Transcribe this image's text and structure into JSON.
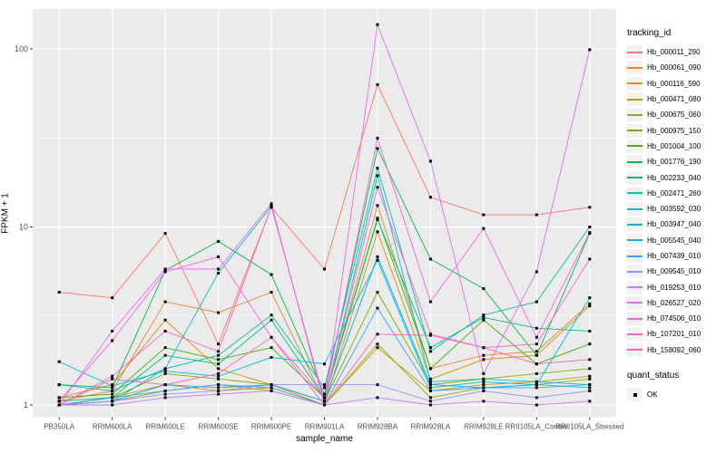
{
  "style": {
    "panel_bg": "#EBEBEB",
    "grid_color": "#FFFFFF",
    "tick_text_color": "#4D4D4D",
    "axis_title_color": "#000000",
    "marker_color": "#000000",
    "legend_key_bg": "#F2F2F2"
  },
  "chart_data": {
    "type": "line",
    "y_scale": "log10",
    "xlabel": "sample_name",
    "ylabel": "FPKM + 1",
    "legend_position": "right",
    "legend_title": "tracking_id",
    "legend2_title": "quant_status",
    "legend2_items": [
      "OK"
    ],
    "y_ticks": [
      1,
      10,
      100
    ],
    "ylim": [
      1,
      170
    ],
    "grid": true,
    "marker": "filled-black-square",
    "categories": [
      "PB350LA",
      "RRIM600LA",
      "RRIM600LE",
      "RRIM600SE",
      "RRIM600PE",
      "RRIM901LA",
      "RRIM928BA",
      "RRIM928LA",
      "RRIM928LE",
      "RRII105LA_Control",
      "RRII105LA_Stressed"
    ],
    "series": [
      {
        "name": "Hb_000011_290",
        "color": "#F8766D",
        "values": [
          4.3,
          4.0,
          9.2,
          2.2,
          12.9,
          5.8,
          63,
          14.7,
          11.7,
          11.7,
          12.9
        ]
      },
      {
        "name": "Hb_000061_090",
        "color": "#E88526",
        "values": [
          1.05,
          1.2,
          3.8,
          3.3,
          4.3,
          1.05,
          13.2,
          1.6,
          1.9,
          2.0,
          3.7
        ]
      },
      {
        "name": "Hb_000116_590",
        "color": "#D89000",
        "values": [
          1.1,
          1.3,
          3.0,
          1.6,
          1.3,
          1.0,
          9.4,
          1.4,
          1.8,
          1.9,
          3.6
        ]
      },
      {
        "name": "Hb_000471_080",
        "color": "#C09B00",
        "values": [
          1.0,
          1.1,
          1.3,
          1.2,
          1.25,
          1.0,
          2.1,
          1.2,
          1.3,
          1.35,
          1.45
        ]
      },
      {
        "name": "Hb_000675_060",
        "color": "#A3A500",
        "values": [
          1.0,
          1.05,
          1.2,
          1.3,
          1.2,
          1.0,
          2.2,
          1.1,
          1.25,
          1.3,
          1.4
        ]
      },
      {
        "name": "Hb_000975_150",
        "color": "#7CAE00",
        "values": [
          1.0,
          1.1,
          1.5,
          1.4,
          1.3,
          1.05,
          4.3,
          1.3,
          1.4,
          1.5,
          1.6
        ]
      },
      {
        "name": "Hb_001004_100",
        "color": "#39B600",
        "values": [
          1.1,
          1.15,
          2.1,
          1.8,
          2.1,
          1.1,
          11.2,
          1.6,
          3.0,
          1.7,
          2.2
        ]
      },
      {
        "name": "Hb_001776_190",
        "color": "#00BB4E",
        "values": [
          1.3,
          1.25,
          5.7,
          8.3,
          5.4,
          1.15,
          27.6,
          6.6,
          4.5,
          1.9,
          9.2
        ]
      },
      {
        "name": "Hb_002233_040",
        "color": "#00BF7D",
        "values": [
          1.05,
          1.1,
          1.9,
          1.7,
          3.0,
          1.1,
          11.0,
          2.1,
          3.1,
          2.7,
          2.6
        ]
      },
      {
        "name": "Hb_002471_260",
        "color": "#00C1A3",
        "values": [
          1.3,
          1.2,
          1.6,
          1.9,
          3.2,
          1.25,
          21.4,
          2.0,
          3.2,
          3.8,
          10.0
        ]
      },
      {
        "name": "Hb_003592_030",
        "color": "#00BFC4",
        "values": [
          1.0,
          1.05,
          1.6,
          5.5,
          13.1,
          1.05,
          19.4,
          1.35,
          1.4,
          1.35,
          1.3
        ]
      },
      {
        "name": "Hb_003947_040",
        "color": "#00BADE",
        "values": [
          1.75,
          1.28,
          1.55,
          1.45,
          1.85,
          1.7,
          6.5,
          1.25,
          1.35,
          1.3,
          1.25
        ]
      },
      {
        "name": "Hb_005545_040",
        "color": "#00B0F6",
        "values": [
          1.0,
          1.05,
          1.3,
          1.25,
          1.3,
          1.05,
          6.8,
          1.3,
          1.25,
          1.3,
          4.0
        ]
      },
      {
        "name": "Hb_007439_010",
        "color": "#35A2FF",
        "values": [
          1.0,
          1.1,
          1.2,
          1.3,
          1.25,
          1.0,
          3.5,
          1.2,
          1.25,
          1.25,
          1.3
        ]
      },
      {
        "name": "Hb_009545_010",
        "color": "#9590FF",
        "values": [
          1.0,
          1.05,
          1.15,
          1.2,
          1.3,
          1.3,
          1.3,
          1.05,
          1.2,
          1.1,
          1.2
        ]
      },
      {
        "name": "Hb_019253_010",
        "color": "#C77CFF",
        "values": [
          1.0,
          1.0,
          1.1,
          1.15,
          1.2,
          1.0,
          1.1,
          1.0,
          1.05,
          1.0,
          1.05
        ]
      },
      {
        "name": "Hb_026527_020",
        "color": "#E76BF3",
        "values": [
          1.0,
          2.6,
          5.8,
          5.8,
          13.5,
          1.0,
          137,
          23.4,
          1.5,
          5.6,
          99
        ]
      },
      {
        "name": "Hb_074506_010",
        "color": "#FA62DB",
        "values": [
          1.05,
          2.3,
          5.6,
          6.8,
          2.4,
          1.1,
          31.5,
          3.8,
          9.8,
          2.4,
          9.3
        ]
      },
      {
        "name": "Hb_107201_010",
        "color": "#FF61CC",
        "values": [
          1.0,
          1.45,
          2.6,
          2.0,
          13.0,
          1.05,
          16.7,
          2.5,
          2.1,
          2.2,
          6.6
        ]
      },
      {
        "name": "Hb_158092_060",
        "color": "#FF62BC",
        "values": [
          1.0,
          1.4,
          1.3,
          1.5,
          2.4,
          1.0,
          2.5,
          2.46,
          2.1,
          1.7,
          1.8
        ]
      }
    ]
  }
}
